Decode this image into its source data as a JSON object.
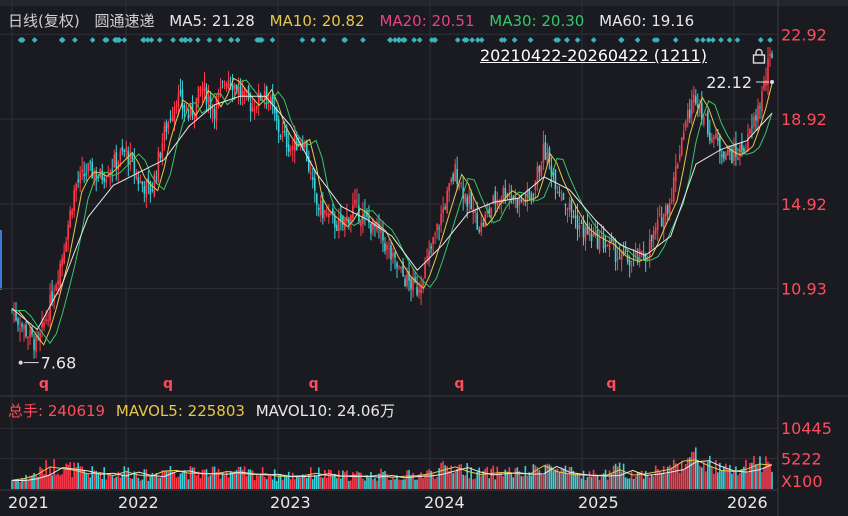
{
  "header": {
    "chart_kind": "日线(复权)",
    "stock_name": "圆通速递",
    "ma": [
      {
        "label": "MA5: 21.28",
        "color": "#e8e8e8"
      },
      {
        "label": "MA10: 20.82",
        "color": "#e5c84a"
      },
      {
        "label": "MA20: 20.51",
        "color": "#e8437f"
      },
      {
        "label": "MA30: 20.30",
        "color": "#35c76a"
      },
      {
        "label": "MA60: 19.16",
        "color": "#e8e8e8"
      }
    ]
  },
  "date_range_label": "20210422-20260422 (1211)",
  "volume_legend": {
    "total": "总手: 240619",
    "mavol5": "MAVOL5: 225803",
    "mavol10": "MAVOL10: 24.06万",
    "colors": {
      "total": "#ff4c5c",
      "mavol5": "#e5c84a",
      "mavol10": "#e8e8e8"
    }
  },
  "colors": {
    "up": "#ff3b4e",
    "down": "#3ad2d8",
    "axis_label": "#ff4c5c",
    "grid": "#2e3038",
    "marker": "#3ab5be"
  },
  "chart_data": [
    {
      "type": "line",
      "title": "",
      "x_tick_labels": [
        "2021",
        "2022",
        "2023",
        "2024",
        "2025",
        "2026"
      ],
      "y_tick_labels": [
        "22.92",
        "18.92",
        "14.92",
        "10.93"
      ],
      "ylim": [
        7.0,
        23.5
      ],
      "annotations": [
        {
          "label": "7.68",
          "x": "2021-05",
          "y": 7.68,
          "kind": "low"
        },
        {
          "label": "22.12",
          "x": "2026-04",
          "y": 22.12,
          "kind": "high"
        }
      ],
      "event_markers": [
        "q",
        "q",
        "q",
        "q",
        "q"
      ],
      "series": [
        {
          "kind": "price",
          "x": [
            "2021-04",
            "2021-05",
            "2021-06",
            "2021-07",
            "2021-08",
            "2021-09",
            "2021-10",
            "2021-11",
            "2021-12",
            "2022-01",
            "2022-02",
            "2022-03",
            "2022-04",
            "2022-05",
            "2022-06",
            "2022-07",
            "2022-08",
            "2022-09",
            "2022-10",
            "2022-11",
            "2022-12",
            "2023-01",
            "2023-02",
            "2023-03",
            "2023-04",
            "2023-05",
            "2023-06",
            "2023-07",
            "2023-08",
            "2023-09",
            "2023-10",
            "2023-11",
            "2023-12",
            "2024-01",
            "2024-02",
            "2024-03",
            "2024-04",
            "2024-05",
            "2024-06",
            "2024-07",
            "2024-08",
            "2024-09",
            "2024-10",
            "2024-11",
            "2024-12",
            "2025-01",
            "2025-02",
            "2025-03",
            "2025-04",
            "2025-05",
            "2025-06",
            "2025-07",
            "2025-08",
            "2025-09",
            "2025-10",
            "2025-11",
            "2025-12",
            "2026-01",
            "2026-02",
            "2026-03",
            "2026-04"
          ],
          "values": [
            9.9,
            9.0,
            8.2,
            10.2,
            12.6,
            15.8,
            16.5,
            16.2,
            16.8,
            17.4,
            16.0,
            15.5,
            18.2,
            20.0,
            19.0,
            20.4,
            19.4,
            21.0,
            20.2,
            19.5,
            20.4,
            18.5,
            17.6,
            18.0,
            14.9,
            14.3,
            13.8,
            14.8,
            14.1,
            13.6,
            12.3,
            11.4,
            10.9,
            12.6,
            14.6,
            16.5,
            15.0,
            13.8,
            15.0,
            15.6,
            15.0,
            15.3,
            17.5,
            15.9,
            14.7,
            13.7,
            13.3,
            13.0,
            12.4,
            12.2,
            12.5,
            13.9,
            15.2,
            18.5,
            20.1,
            18.4,
            17.5,
            17.2,
            17.7,
            19.6,
            22.1
          ]
        },
        {
          "kind": "ma-long",
          "x": [
            "2021-04",
            "2021-06",
            "2021-08",
            "2021-10",
            "2021-12",
            "2022-02",
            "2022-04",
            "2022-06",
            "2022-08",
            "2022-10",
            "2022-12",
            "2023-02",
            "2023-04",
            "2023-06",
            "2023-08",
            "2023-10",
            "2023-12",
            "2024-02",
            "2024-04",
            "2024-06",
            "2024-08",
            "2024-10",
            "2024-12",
            "2025-02",
            "2025-04",
            "2025-06",
            "2025-08",
            "2025-10",
            "2025-12",
            "2026-02",
            "2026-04"
          ],
          "values": [
            10.0,
            9.0,
            11.2,
            14.3,
            15.8,
            16.4,
            17.0,
            18.6,
            19.6,
            20.0,
            20.0,
            18.6,
            16.4,
            14.8,
            14.2,
            13.4,
            11.8,
            13.0,
            14.5,
            15.0,
            15.2,
            16.2,
            15.6,
            14.2,
            13.0,
            12.5,
            13.4,
            16.8,
            17.5,
            17.9,
            19.2
          ]
        }
      ]
    },
    {
      "type": "bar",
      "title": "",
      "y_tick_labels": [
        "10445",
        "5222"
      ],
      "unit_label": "X100",
      "ylim": [
        0,
        11000
      ],
      "x": [
        "2021-04",
        "2021-05",
        "2021-06",
        "2021-07",
        "2021-08",
        "2021-09",
        "2021-10",
        "2021-11",
        "2021-12",
        "2022-01",
        "2022-02",
        "2022-03",
        "2022-04",
        "2022-05",
        "2022-06",
        "2022-07",
        "2022-08",
        "2022-09",
        "2022-10",
        "2022-11",
        "2022-12",
        "2023-01",
        "2023-02",
        "2023-03",
        "2023-04",
        "2023-05",
        "2023-06",
        "2023-07",
        "2023-08",
        "2023-09",
        "2023-10",
        "2023-11",
        "2023-12",
        "2024-01",
        "2024-02",
        "2024-03",
        "2024-04",
        "2024-05",
        "2024-06",
        "2024-07",
        "2024-08",
        "2024-09",
        "2024-10",
        "2024-11",
        "2024-12",
        "2025-01",
        "2025-02",
        "2025-03",
        "2025-04",
        "2025-05",
        "2025-06",
        "2025-07",
        "2025-08",
        "2025-09",
        "2025-10",
        "2025-11",
        "2025-12",
        "2026-01",
        "2026-02",
        "2026-03",
        "2026-04"
      ],
      "values": [
        1500,
        1800,
        2500,
        3800,
        3500,
        3200,
        2600,
        2800,
        2300,
        3000,
        2400,
        2200,
        3100,
        3200,
        2700,
        2700,
        2600,
        3000,
        2700,
        2500,
        2600,
        2200,
        2200,
        2300,
        2700,
        2300,
        2200,
        2300,
        2100,
        2400,
        2000,
        2200,
        2300,
        2600,
        3200,
        3800,
        3000,
        2500,
        2700,
        2900,
        2600,
        2700,
        4000,
        3000,
        2600,
        2400,
        2300,
        2400,
        3300,
        2400,
        2600,
        3000,
        3400,
        4800,
        5000,
        4000,
        3200,
        3000,
        3400,
        4300,
        4100
      ]
    }
  ]
}
